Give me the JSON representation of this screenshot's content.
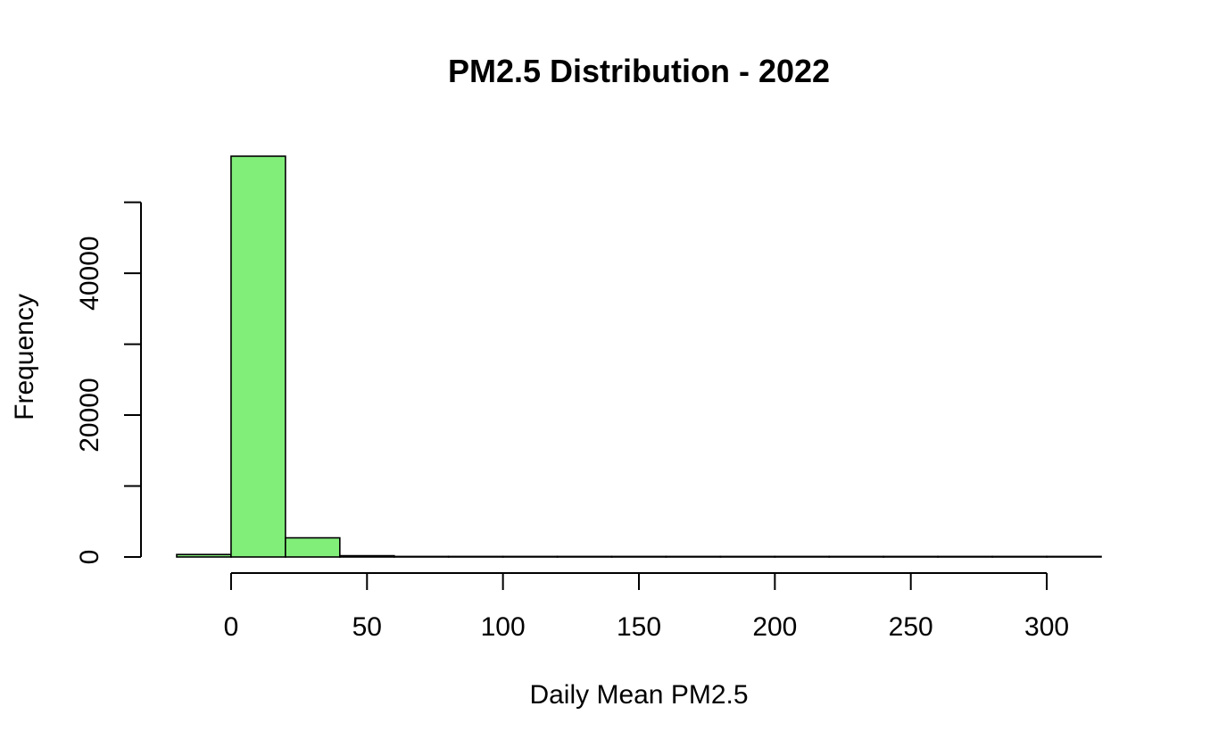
{
  "chart_data": {
    "type": "bar",
    "title": "PM2.5 Distribution - 2022",
    "xlabel": "Daily Mean PM2.5",
    "ylabel": "Frequency",
    "bin_edges": [
      -20,
      0,
      20,
      40,
      60,
      80,
      100,
      120,
      140,
      160,
      180,
      200,
      220,
      240,
      260,
      280,
      300,
      320
    ],
    "values": [
      350,
      56500,
      2700,
      180,
      50,
      20,
      10,
      5,
      3,
      2,
      2,
      1,
      1,
      1,
      1,
      1,
      1
    ],
    "bar_color": "#82ee7a",
    "xlim": [
      -20,
      320
    ],
    "ylim": [
      0,
      56500
    ],
    "x_ticks": [
      0,
      50,
      100,
      150,
      200,
      250,
      300
    ],
    "x_tick_labels": [
      "0",
      "50",
      "100",
      "150",
      "200",
      "250",
      "300"
    ],
    "y_ticks": [
      0,
      10000,
      20000,
      30000,
      40000,
      50000
    ],
    "y_tick_labels": [
      "0",
      "",
      "20000",
      "",
      "40000",
      ""
    ],
    "grid": false,
    "legend": "none"
  }
}
